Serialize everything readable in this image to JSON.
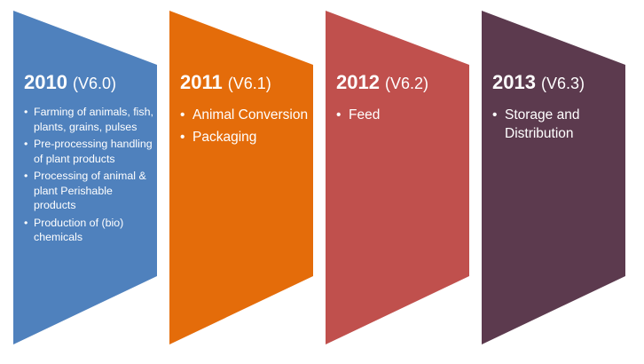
{
  "panels": [
    {
      "year": "2010",
      "version": "(V6.0)",
      "color": "#4F81BD",
      "bullets": [
        "Farming of animals, fish, plants, grains, pulses",
        "Pre-processing handling of plant products",
        "Processing of animal & plant Perishable products",
        "Production of (bio) chemicals"
      ]
    },
    {
      "year": "2011",
      "version": "(V6.1)",
      "color": "#E46C0A",
      "bullets": [
        "Animal Conversion",
        "Packaging"
      ]
    },
    {
      "year": "2012",
      "version": "(V6.2)",
      "color": "#C0504D",
      "bullets": [
        "Feed"
      ]
    },
    {
      "year": "2013",
      "version": "(V6.3)",
      "color": "#5C3A4E",
      "bullets": [
        "Storage and Distribution"
      ]
    }
  ]
}
